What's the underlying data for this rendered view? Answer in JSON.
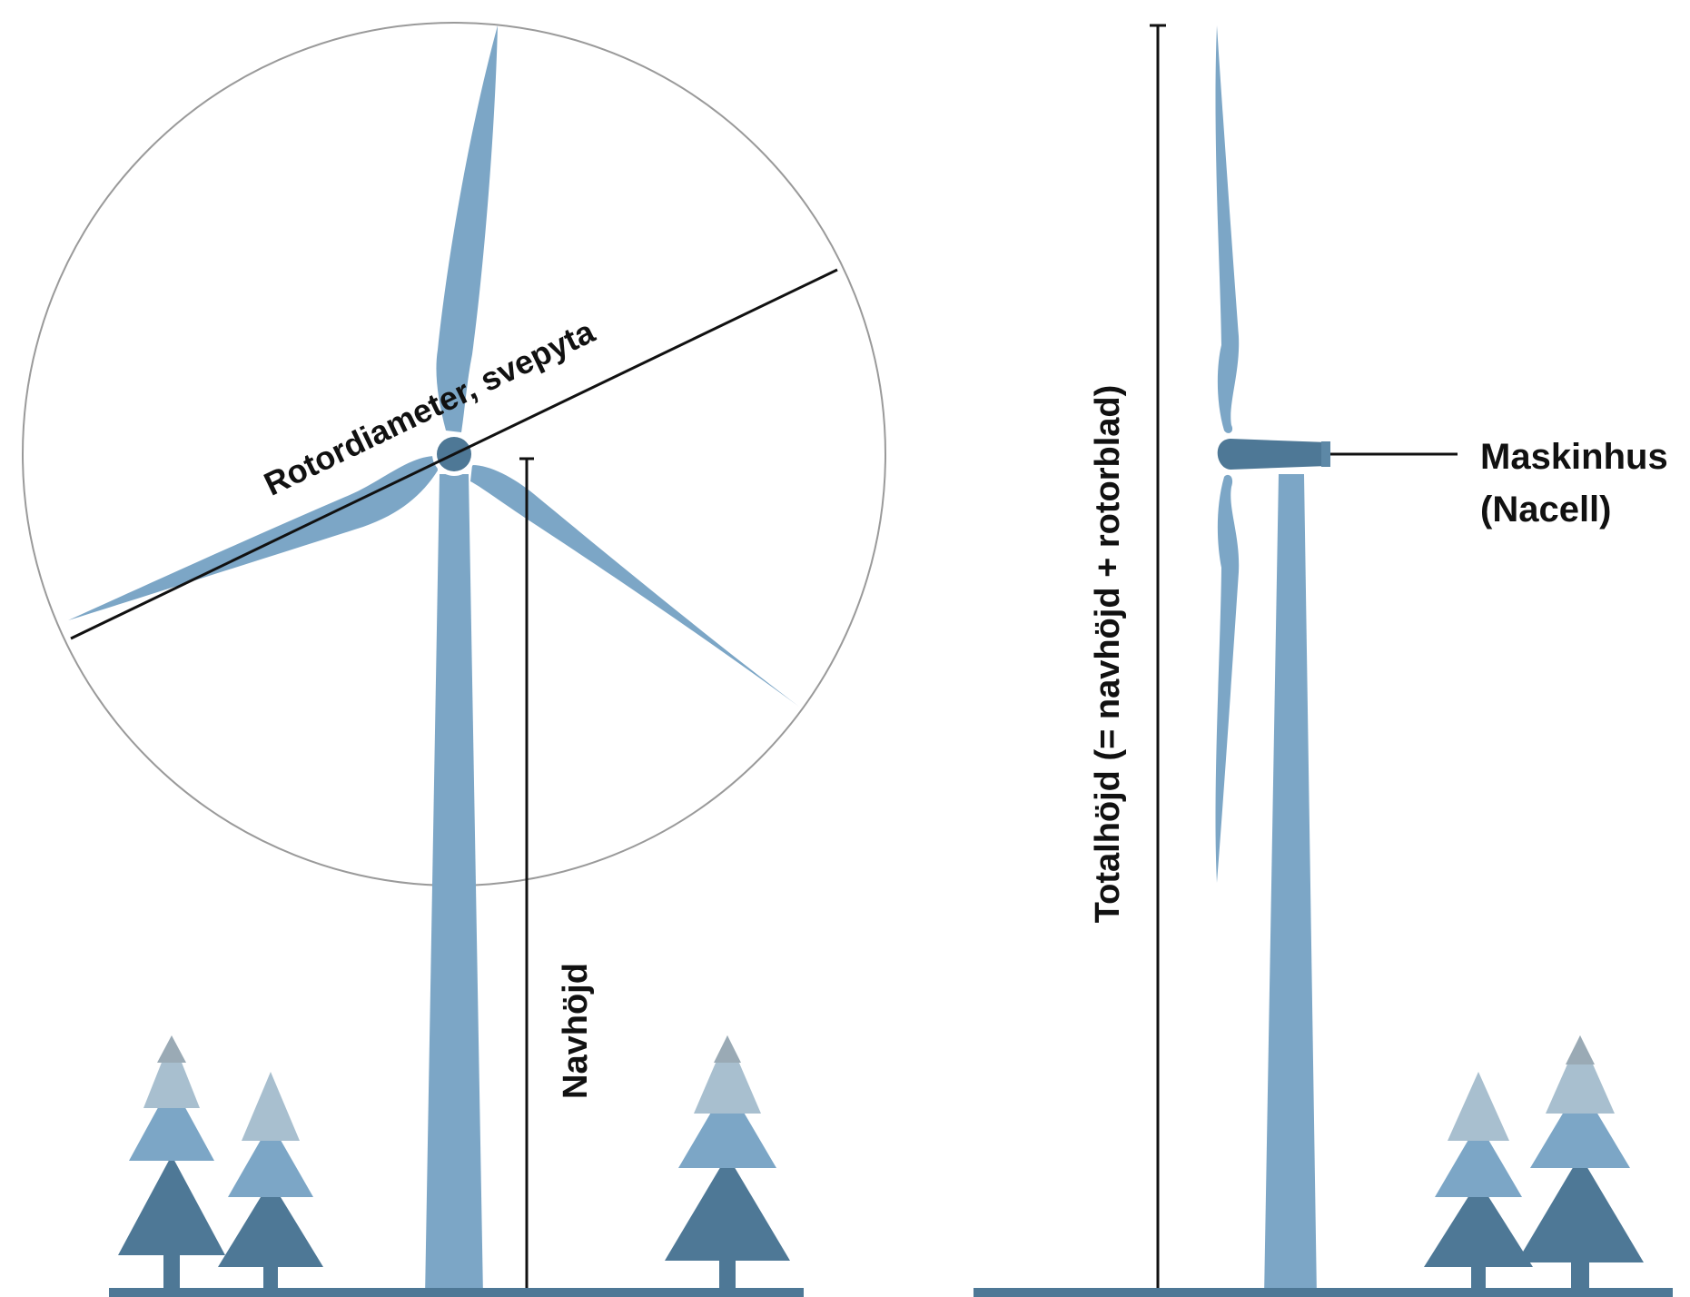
{
  "labels": {
    "rotor_diameter": "Rotordiameter, svepyta",
    "hub_height": "Navhöjd",
    "total_height": "Totalhöjd (= navhöjd + rotorblad)",
    "nacelle_line1": "Maskinhus",
    "nacelle_line2": "(Nacell)"
  },
  "colors": {
    "blade": "#7ca6c6",
    "tower": "#7ca6c6",
    "hub": "#4e7896",
    "nacelle": "#4e7896",
    "ground": "#4e7896",
    "tree_dark": "#4e7896",
    "tree_mid": "#7ca6c6",
    "tree_light": "#a8bfcf",
    "tree_top": "#9aaab5",
    "circle": "#9a9a9a",
    "line": "#111111"
  }
}
